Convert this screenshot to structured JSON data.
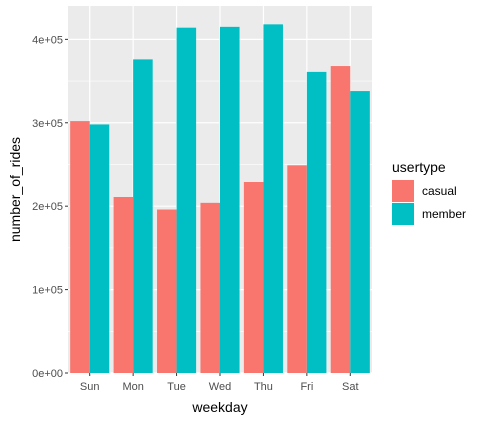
{
  "chart_data": {
    "type": "bar",
    "xlabel": "weekday",
    "ylabel": "number_of_rides",
    "categories": [
      "Sun",
      "Mon",
      "Tue",
      "Wed",
      "Thu",
      "Fri",
      "Sat"
    ],
    "ylim": [
      0,
      440000
    ],
    "yticks": [
      0,
      100000,
      200000,
      300000,
      400000
    ],
    "ytick_labels": [
      "0e+00",
      "1e+05",
      "2e+05",
      "3e+05",
      "4e+05"
    ],
    "grid": true,
    "legend_title": "usertype",
    "legend_position": "right",
    "series": [
      {
        "name": "casual",
        "color": "#F8766D",
        "values": [
          302000,
          211000,
          196000,
          204000,
          229000,
          249000,
          368000
        ]
      },
      {
        "name": "member",
        "color": "#00BFC4",
        "values": [
          298000,
          376000,
          414000,
          415000,
          418000,
          361000,
          338000
        ]
      }
    ]
  }
}
